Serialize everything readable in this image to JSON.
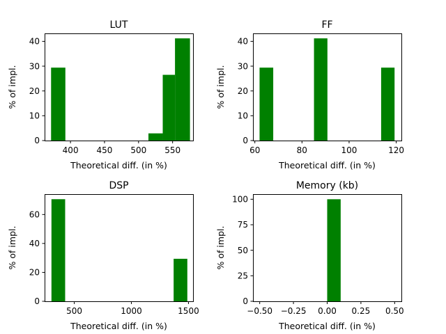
{
  "figure": {
    "background": "#ffffff",
    "bar_color": "#008000"
  },
  "chart_data": [
    {
      "type": "bar",
      "title": "LUT",
      "xlabel": "Theoretical diff. (in %)",
      "ylabel": "% of impl.",
      "xlim": [
        362,
        580
      ],
      "ylim": [
        0,
        43.2
      ],
      "xticks": [
        400,
        450,
        500,
        550
      ],
      "xtick_labels": [
        "400",
        "450",
        "500",
        "550"
      ],
      "yticks": [
        0,
        10,
        20,
        30,
        40
      ],
      "ytick_labels": [
        "0",
        "10",
        "20",
        "30",
        "40"
      ],
      "bars": [
        {
          "x0": 371.5,
          "x1": 392.5,
          "value": 29.4
        },
        {
          "x0": 514.5,
          "x1": 535.5,
          "value": 2.9
        },
        {
          "x0": 535.5,
          "x1": 553.5,
          "value": 26.5
        },
        {
          "x0": 553.5,
          "x1": 575.5,
          "value": 41.2
        }
      ]
    },
    {
      "type": "bar",
      "title": "FF",
      "xlabel": "Theoretical diff. (in %)",
      "ylabel": "% of impl.",
      "xlim": [
        59.2,
        122.2
      ],
      "ylim": [
        0,
        43.2
      ],
      "xticks": [
        60,
        80,
        100,
        120
      ],
      "xtick_labels": [
        "60",
        "80",
        "100",
        "120"
      ],
      "yticks": [
        0,
        10,
        20,
        30,
        40
      ],
      "ytick_labels": [
        "0",
        "10",
        "20",
        "30",
        "40"
      ],
      "bars": [
        {
          "x0": 62.0,
          "x1": 67.8,
          "value": 29.4
        },
        {
          "x0": 85.1,
          "x1": 90.8,
          "value": 41.2
        },
        {
          "x0": 113.6,
          "x1": 119.3,
          "value": 29.4
        }
      ]
    },
    {
      "type": "bar",
      "title": "DSP",
      "xlabel": "Theoretical diff. (in %)",
      "ylabel": "% of impl.",
      "xlim": [
        240,
        1540
      ],
      "ylim": [
        0,
        74.1
      ],
      "xticks": [
        500,
        1000,
        1500
      ],
      "xtick_labels": [
        "500",
        "1000",
        "1500"
      ],
      "yticks": [
        0,
        20,
        40,
        60
      ],
      "ytick_labels": [
        "0",
        "20",
        "40",
        "60"
      ],
      "bars": [
        {
          "x0": 300,
          "x1": 420,
          "value": 70.6
        },
        {
          "x0": 1370,
          "x1": 1490,
          "value": 29.4
        }
      ]
    },
    {
      "type": "bar",
      "title": "Memory (kb)",
      "xlabel": "Theoretical diff. (in %)",
      "ylabel": "% of impl.",
      "xlim": [
        -0.55,
        0.55
      ],
      "ylim": [
        0,
        105
      ],
      "xticks": [
        -0.5,
        -0.25,
        0.0,
        0.25,
        0.5
      ],
      "xtick_labels": [
        "−0.50",
        "−0.25",
        "0.00",
        "0.25",
        "0.50"
      ],
      "yticks": [
        0,
        25,
        50,
        75,
        100
      ],
      "ytick_labels": [
        "0",
        "25",
        "50",
        "75",
        "100"
      ],
      "bars": [
        {
          "x0": 0.0,
          "x1": 0.1,
          "value": 100
        }
      ]
    }
  ]
}
